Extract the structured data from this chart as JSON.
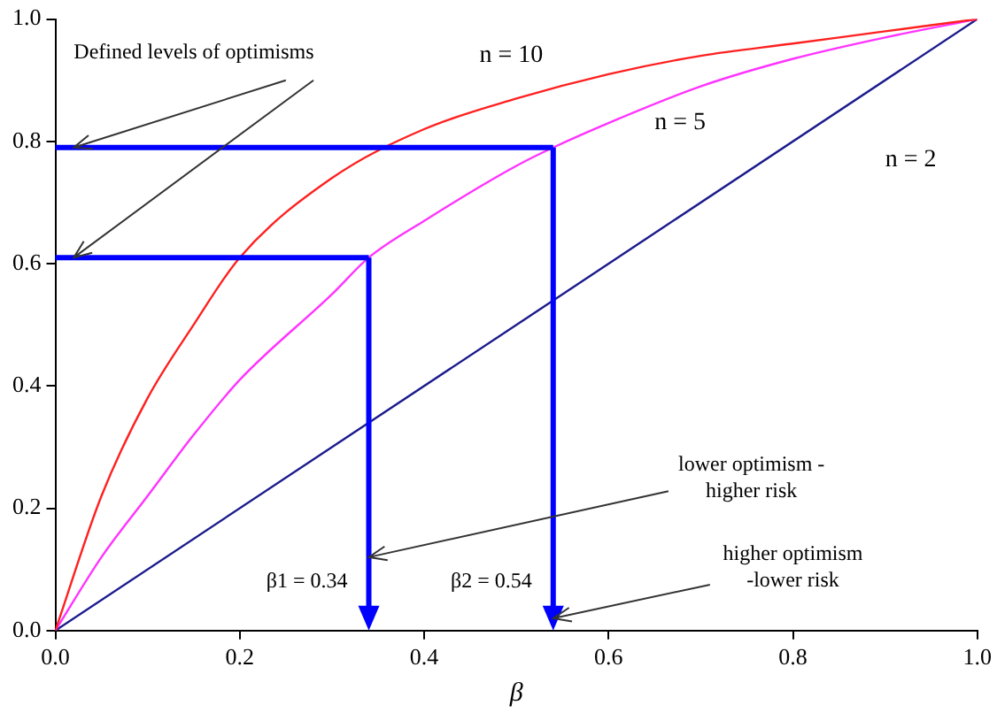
{
  "chart_data": {
    "type": "line",
    "xlabel": "β",
    "grid": false,
    "legend": false,
    "marker": "none",
    "xlim": [
      0,
      1
    ],
    "ylim": [
      0,
      1
    ],
    "xticks": [
      {
        "value": 0,
        "label": "0.0"
      },
      {
        "value": 0.2,
        "label": "0.2"
      },
      {
        "value": 0.4,
        "label": "0.4"
      },
      {
        "value": 0.6,
        "label": "0.6"
      },
      {
        "value": 0.8,
        "label": "0.8"
      },
      {
        "value": 1,
        "label": "1.0"
      }
    ],
    "yticks": [
      {
        "value": 0,
        "label": "0.0"
      },
      {
        "value": 0.2,
        "label": "0.2"
      },
      {
        "value": 0.4,
        "label": "0.4"
      },
      {
        "value": 0.6,
        "label": "0.6"
      },
      {
        "value": 0.8,
        "label": "0.8"
      },
      {
        "value": 1,
        "label": "1.0"
      }
    ],
    "series": [
      {
        "color": "#ff2020",
        "x": [
          0,
          0.05,
          0.1,
          0.15,
          0.2,
          0.3,
          0.4,
          0.5,
          0.6,
          0.7,
          0.8,
          0.9,
          1
        ],
        "values": [
          0,
          0.22,
          0.38,
          0.5,
          0.61,
          0.74,
          0.82,
          0.87,
          0.91,
          0.94,
          0.96,
          0.98,
          1
        ]
      },
      {
        "color": "#ff33ff",
        "x": [
          0,
          0.05,
          0.1,
          0.15,
          0.2,
          0.3,
          0.34,
          0.4,
          0.5,
          0.54,
          0.6,
          0.7,
          0.8,
          0.9,
          1
        ],
        "values": [
          0,
          0.12,
          0.22,
          0.32,
          0.41,
          0.55,
          0.61,
          0.67,
          0.76,
          0.79,
          0.83,
          0.89,
          0.935,
          0.97,
          1
        ]
      },
      {
        "color": "#1a1a8c",
        "x": [
          0,
          1
        ],
        "values": [
          0,
          1
        ]
      }
    ],
    "annotations": [
      "n = 10",
      "n = 5",
      "n = 2",
      {
        "text": "Defined levels of optimisms",
        "x": 0.02,
        "y": 0.79
      },
      {
        "text": "lower optimism -\nhigher risk",
        "x": 0.34,
        "y": 0.12
      },
      {
        "text": "higher optimism\n-lower risk",
        "x": 0.54,
        "y": 0.02
      }
    ],
    "ref_lines": [
      {
        "axis": "x",
        "value": 0.34,
        "label": "β1 = 0.34",
        "color": "#0000ff"
      },
      {
        "axis": "y",
        "value": 0.61,
        "color": "#0000ff"
      },
      {
        "axis": "x",
        "value": 0.54,
        "label": "β2 = 0.54",
        "color": "#0000ff"
      },
      {
        "axis": "y",
        "value": 0.79,
        "color": "#0000ff"
      }
    ]
  }
}
